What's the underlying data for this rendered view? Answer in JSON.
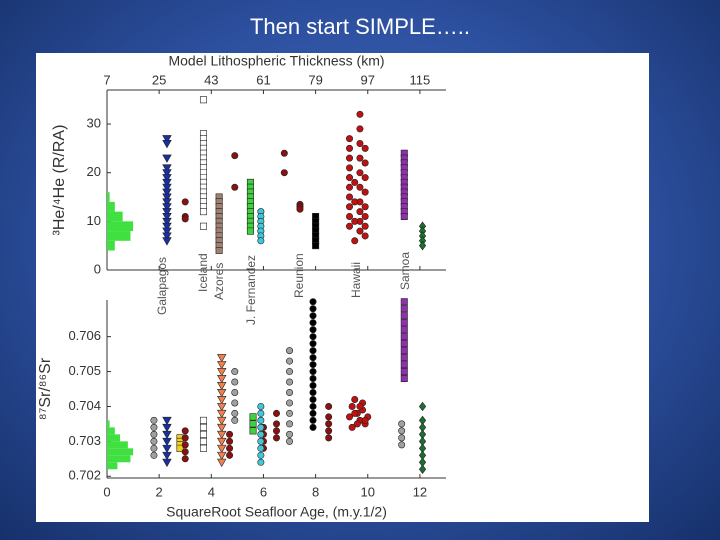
{
  "slide_title": "Then start SIMPLE…..",
  "chart_data": [
    {
      "type": "scatter",
      "x2label": "Model Lithospheric Thickness (km)",
      "ylabel": "³He/⁴He (R/RA)",
      "annotations": [
        "Galapagos",
        "Iceland",
        "Azores",
        "J. Fernandez",
        "Reunion",
        "Hawaii",
        "Samoa"
      ],
      "xlim": [
        0,
        13
      ],
      "xticks": [
        0,
        2,
        4,
        6,
        8,
        10,
        12
      ],
      "x2lim": [
        7,
        124
      ],
      "x2ticks": [
        7,
        25,
        43,
        61,
        79,
        97,
        115
      ],
      "ylim": [
        0,
        37
      ],
      "yticks": [
        0,
        10,
        20,
        30
      ],
      "histogram": {
        "color": "#40e040",
        "bins": [
          4,
          6,
          8,
          10,
          12,
          14,
          16
        ],
        "counts": [
          0.3,
          0.9,
          1.0,
          0.6,
          0.3,
          0.1
        ]
      },
      "series": [
        {
          "marker": "tri-down",
          "color": "#1a2fa0",
          "x": [
            2.3,
            2.3,
            2.3,
            2.3,
            2.3,
            2.3,
            2.3,
            2.3,
            2.3,
            2.3,
            2.3,
            2.3,
            2.3,
            2.3,
            2.3,
            2.3,
            2.3,
            2.3,
            2.3
          ],
          "values": [
            27,
            26,
            23,
            21,
            20,
            19,
            18,
            17,
            16,
            15,
            14,
            13,
            12,
            11,
            10,
            9,
            8,
            7,
            6
          ]
        },
        {
          "marker": "square",
          "color": "#ffffff",
          "x": [
            3.7,
            3.7,
            3.7,
            3.7,
            3.7,
            3.7,
            3.7,
            3.7,
            3.7,
            3.7,
            3.7,
            3.7,
            3.7,
            3.7,
            3.7,
            3.7,
            3.7,
            3.7,
            3.7
          ],
          "values": [
            35,
            28,
            27,
            26,
            25,
            24,
            23,
            22,
            21,
            20,
            19,
            18,
            17,
            16,
            15,
            14,
            13,
            12,
            9
          ]
        },
        {
          "marker": "circle",
          "color": "#8b1010",
          "x": [
            3.0,
            3.0,
            3.0,
            4.9,
            4.9,
            6.8,
            6.8,
            7.4,
            7.4,
            7.4
          ],
          "values": [
            14,
            11,
            10.5,
            23.5,
            17,
            24,
            20,
            13.5,
            13,
            12.5
          ]
        },
        {
          "marker": "square",
          "color": "#a08070",
          "x": [
            4.3,
            4.3,
            4.3,
            4.3,
            4.3,
            4.3,
            4.3,
            4.3,
            4.3,
            4.3,
            4.3,
            4.3
          ],
          "values": [
            15,
            14,
            13,
            12,
            11,
            10,
            9,
            8,
            7,
            6,
            5,
            4
          ]
        },
        {
          "marker": "square",
          "color": "#40d040",
          "x": [
            5.5,
            5.5,
            5.5,
            5.5,
            5.5,
            5.5,
            5.5,
            5.5,
            5.5,
            5.5,
            5.5
          ],
          "values": [
            18,
            17,
            16,
            15,
            14,
            13,
            12,
            11,
            10,
            9,
            8
          ]
        },
        {
          "marker": "circle",
          "color": "#40c8d8",
          "x": [
            5.9,
            5.9,
            5.9,
            5.9,
            5.9,
            5.9,
            5.9
          ],
          "values": [
            12,
            11,
            10,
            9,
            8,
            7,
            6
          ]
        },
        {
          "marker": "square",
          "color": "#000000",
          "x": [
            8.0,
            8.0,
            8.0,
            8.0,
            8.0,
            8.0,
            8.0
          ],
          "values": [
            11,
            10,
            9,
            8,
            7,
            6,
            5
          ]
        },
        {
          "marker": "circle",
          "color": "#c01010",
          "x": [
            9.3,
            9.3,
            9.3,
            9.3,
            9.3,
            9.3,
            9.3,
            9.3,
            9.3,
            9.3,
            9.7,
            9.7,
            9.7,
            9.7,
            9.7,
            9.7,
            9.7,
            9.7,
            9.7,
            9.7,
            9.9,
            9.9,
            9.9,
            9.9,
            9.9,
            9.9,
            9.9,
            9.9,
            9.5,
            9.5,
            9.5,
            9.5
          ],
          "values": [
            27,
            25,
            23,
            21,
            19,
            17,
            15,
            13,
            11,
            9,
            32,
            29,
            26,
            23,
            20,
            17,
            14,
            12,
            10,
            8,
            25,
            22,
            19,
            16,
            13,
            11,
            9,
            7,
            18,
            14,
            10,
            6
          ]
        },
        {
          "marker": "square",
          "color": "#9030b0",
          "x": [
            11.4,
            11.4,
            11.4,
            11.4,
            11.4,
            11.4,
            11.4,
            11.4,
            11.4,
            11.4,
            11.4,
            11.4,
            11.4,
            11.4
          ],
          "values": [
            24,
            23,
            22,
            21,
            20,
            19,
            18,
            17,
            16,
            15,
            14,
            13,
            12,
            11
          ]
        },
        {
          "marker": "diamond",
          "color": "#1a7030",
          "x": [
            12.1,
            12.1,
            12.1,
            12.1,
            12.1
          ],
          "values": [
            9,
            8,
            7,
            6,
            5
          ]
        }
      ]
    },
    {
      "type": "scatter",
      "xlabel": "SquareRoot Seafloor Age, (m.y.1/2)",
      "ylabel": "⁸⁷Sr/⁸⁶Sr",
      "xlim": [
        0,
        13
      ],
      "xticks": [
        0,
        2,
        4,
        6,
        8,
        10,
        12
      ],
      "ylim": [
        0.70195,
        0.70705
      ],
      "yticks": [
        0.702,
        0.703,
        0.704,
        0.705,
        0.706
      ],
      "histogram": {
        "color": "#40e040",
        "bins": [
          0.7022,
          0.7024,
          0.7026,
          0.7028,
          0.703,
          0.7032,
          0.7034,
          0.7036
        ],
        "counts": [
          0.4,
          0.9,
          1.0,
          0.8,
          0.5,
          0.3,
          0.1
        ]
      },
      "series": [
        {
          "marker": "circle",
          "color": "#a0a0a0",
          "x": [
            1.8,
            1.8,
            1.8,
            1.8,
            1.8,
            1.8,
            4.9,
            4.9,
            4.9,
            4.9,
            4.9,
            4.9,
            7.0,
            7.0,
            7.0,
            7.0,
            7.0,
            7.0,
            7.0,
            7.0,
            7.0,
            7.0,
            11.3,
            11.3,
            11.3,
            11.3
          ],
          "values": [
            0.7026,
            0.7028,
            0.703,
            0.7032,
            0.7034,
            0.7036,
            0.705,
            0.7047,
            0.7044,
            0.7041,
            0.7038,
            0.7036,
            0.7056,
            0.7053,
            0.705,
            0.7047,
            0.7044,
            0.7041,
            0.7038,
            0.7035,
            0.7032,
            0.703,
            0.7029,
            0.7031,
            0.7033,
            0.7035
          ]
        },
        {
          "marker": "tri-down",
          "color": "#1a2fa0",
          "x": [
            2.3,
            2.3,
            2.3,
            2.3,
            2.3,
            2.3,
            2.3
          ],
          "values": [
            0.7036,
            0.7034,
            0.7032,
            0.703,
            0.7028,
            0.7026,
            0.7024
          ]
        },
        {
          "marker": "square",
          "color": "#f0d020",
          "x": [
            2.8,
            2.8,
            2.8,
            2.8
          ],
          "values": [
            0.7031,
            0.703,
            0.7029,
            0.7028
          ]
        },
        {
          "marker": "square",
          "color": "#ffffff",
          "x": [
            3.7,
            3.7,
            3.7,
            3.7,
            3.7
          ],
          "values": [
            0.7036,
            0.7034,
            0.7032,
            0.703,
            0.7028
          ]
        },
        {
          "marker": "circle",
          "color": "#8b1010",
          "x": [
            3.0,
            3.0,
            3.0,
            3.0,
            3.0,
            4.7,
            4.7,
            4.7,
            4.7,
            6.0,
            6.0,
            6.0,
            6.0,
            6.5,
            6.5,
            6.5,
            6.5,
            8.5,
            8.5,
            8.5,
            8.5,
            8.5
          ],
          "values": [
            0.7033,
            0.7031,
            0.7029,
            0.7027,
            0.7025,
            0.7032,
            0.703,
            0.7028,
            0.7026,
            0.7034,
            0.7032,
            0.703,
            0.7028,
            0.7038,
            0.7035,
            0.7033,
            0.7031,
            0.704,
            0.7037,
            0.7035,
            0.7033,
            0.7031
          ]
        },
        {
          "marker": "tri-down",
          "color": "#f08050",
          "x": [
            4.4,
            4.4,
            4.4,
            4.4,
            4.4,
            4.4,
            4.4,
            4.4,
            4.4,
            4.4,
            4.4,
            4.4,
            4.4,
            4.4,
            4.4,
            4.4
          ],
          "values": [
            0.7054,
            0.7052,
            0.705,
            0.7048,
            0.7046,
            0.7044,
            0.7042,
            0.704,
            0.7038,
            0.7036,
            0.7034,
            0.7032,
            0.703,
            0.7028,
            0.7026,
            0.7024
          ]
        },
        {
          "marker": "square",
          "color": "#40d040",
          "x": [
            5.6,
            5.6,
            5.6
          ],
          "values": [
            0.7037,
            0.7035,
            0.7033
          ]
        },
        {
          "marker": "circle",
          "color": "#40c8d8",
          "x": [
            5.9,
            5.9,
            5.9,
            5.9,
            5.9,
            5.9,
            5.9,
            5.9,
            5.9
          ],
          "values": [
            0.704,
            0.7038,
            0.7036,
            0.7034,
            0.7032,
            0.703,
            0.7028,
            0.7026,
            0.7024
          ]
        },
        {
          "marker": "circle",
          "color": "#000000",
          "x": [
            7.9,
            7.9,
            7.9,
            7.9,
            7.9,
            7.9,
            7.9,
            7.9,
            7.9,
            7.9,
            7.9,
            7.9,
            7.9,
            7.9,
            7.9,
            7.9,
            7.9,
            7.9,
            7.9
          ],
          "values": [
            0.707,
            0.7068,
            0.7066,
            0.7064,
            0.7062,
            0.706,
            0.7058,
            0.7056,
            0.7054,
            0.7052,
            0.705,
            0.7048,
            0.7046,
            0.7044,
            0.7042,
            0.704,
            0.7038,
            0.7036,
            0.7034
          ]
        },
        {
          "marker": "circle",
          "color": "#c01010",
          "x": [
            9.3,
            9.4,
            9.5,
            9.6,
            9.7,
            9.8,
            9.9,
            10.0,
            9.4,
            9.6,
            9.8,
            9.5,
            9.7,
            9.9
          ],
          "values": [
            0.7037,
            0.704,
            0.7042,
            0.7038,
            0.7036,
            0.7039,
            0.7035,
            0.7037,
            0.7034,
            0.7035,
            0.7041,
            0.7038,
            0.704,
            0.7036
          ]
        },
        {
          "marker": "square",
          "color": "#9030b0",
          "x": [
            11.4,
            11.4,
            11.4,
            11.4,
            11.4,
            11.4,
            11.4,
            11.4,
            11.4,
            11.4,
            11.4,
            11.4
          ],
          "values": [
            0.707,
            0.7068,
            0.7066,
            0.7064,
            0.7062,
            0.706,
            0.7058,
            0.7056,
            0.7054,
            0.7052,
            0.705,
            0.7048
          ]
        },
        {
          "marker": "diamond",
          "color": "#1a7030",
          "x": [
            12.1,
            12.1,
            12.1,
            12.1,
            12.1,
            12.1,
            12.1,
            12.1,
            12.1
          ],
          "values": [
            0.704,
            0.7036,
            0.7034,
            0.7032,
            0.703,
            0.7028,
            0.7026,
            0.7024,
            0.7022
          ]
        }
      ]
    }
  ]
}
